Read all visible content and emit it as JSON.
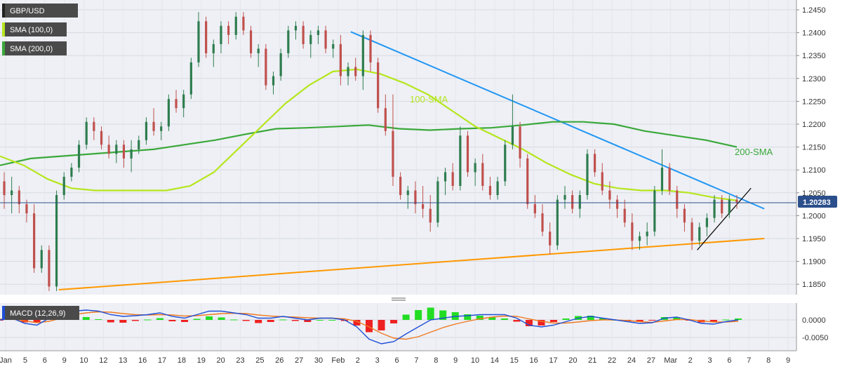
{
  "chart_data": {
    "type": "candlestick",
    "symbol": "GBP/USD",
    "colors": {
      "background": "#eef0f5",
      "up": "#2e7d4f",
      "down": "#c0504d",
      "sma100": "#b5e61d",
      "sma200": "#3aa83a",
      "trend_blue": "#2196f3",
      "trend_orange": "#ff9800",
      "trend_black": "#000000",
      "price_line": "#2b4f8c",
      "macd_line": "#1f4fd8",
      "signal_line": "#f07a20",
      "hist_pos": "#22dd22",
      "hist_neg": "#ee2222",
      "price_badge": "#2b4f8c"
    },
    "legend": [
      {
        "label": "GBP/USD",
        "color": "#4a4a4a"
      },
      {
        "label": "SMA (100,0)",
        "color": "#b5e61d"
      },
      {
        "label": "SMA (200,0)",
        "color": "#3aa83a"
      }
    ],
    "price_axis": {
      "min": 1.18,
      "max": 1.25,
      "ticks": [
        "1.2450",
        "1.2400",
        "1.2350",
        "1.2300",
        "1.2250",
        "1.2200",
        "1.2150",
        "1.2100",
        "1.2050",
        "1.2000",
        "1.1950",
        "1.1900",
        "1.1850"
      ]
    },
    "last_price": "1.20283",
    "x_labels": [
      "Jan",
      "5",
      "6",
      "9",
      "10",
      "12",
      "13",
      "16",
      "17",
      "18",
      "19",
      "20",
      "23",
      "25",
      "26",
      "27",
      "30",
      "Feb",
      "2",
      "3",
      "6",
      "7",
      "8",
      "9",
      "10",
      "14",
      "15",
      "16",
      "17",
      "20",
      "21",
      "22",
      "24",
      "27",
      "Mar",
      "2",
      "3",
      "6",
      "7",
      "8",
      "9"
    ],
    "annotations": [
      {
        "text": "100-SMA",
        "color": "#b5e61d"
      },
      {
        "text": "200-SMA",
        "color": "#3aa83a"
      }
    ],
    "sma100": [
      1.213,
      1.211,
      1.208,
      1.206,
      1.2055,
      1.2055,
      1.2055,
      1.2055,
      1.2065,
      1.2095,
      1.2145,
      1.2195,
      1.2245,
      1.2285,
      1.2315,
      1.232,
      1.231,
      1.229,
      1.2265,
      1.223,
      1.2195,
      1.217,
      1.2145,
      1.2115,
      1.209,
      1.207,
      1.206,
      1.2055,
      1.2055,
      1.205,
      1.204,
      1.2033
    ],
    "sma200": [
      1.211,
      1.2125,
      1.213,
      1.2135,
      1.214,
      1.2145,
      1.2155,
      1.2165,
      1.2178,
      1.219,
      1.2192,
      1.2195,
      1.2198,
      1.219,
      1.2187,
      1.219,
      1.2192,
      1.2198,
      1.2205,
      1.2205,
      1.22,
      1.2185,
      1.2175,
      1.2165,
      1.215
    ],
    "trendlines": [
      {
        "name": "descending-resistance",
        "from": [
          "Feb 1",
          1.2402
        ],
        "to": [
          "Mar 8",
          1.2015
        ]
      },
      {
        "name": "ascending-support",
        "from": [
          "Jan 6",
          1.1838
        ],
        "to": [
          "Mar 8",
          1.195
        ]
      },
      {
        "name": "short-term-support",
        "from": [
          "Mar 2",
          1.1925
        ],
        "to": [
          "Mar 7",
          1.206
        ]
      }
    ],
    "candles": [
      [
        1.2075,
        1.2095,
        1.2015,
        1.2045
      ],
      [
        1.2045,
        1.2085,
        1.2005,
        1.2055
      ],
      [
        1.2055,
        1.2065,
        1.2005,
        1.2025
      ],
      [
        1.2025,
        1.2035,
        1.1985,
        1.2005
      ],
      [
        1.2005,
        1.2025,
        1.1875,
        1.1885
      ],
      [
        1.1885,
        1.1935,
        1.1875,
        1.1925
      ],
      [
        1.1925,
        1.1935,
        1.1835,
        1.1845
      ],
      [
        1.1845,
        1.2055,
        1.1835,
        1.2045
      ],
      [
        1.2045,
        1.2095,
        1.2035,
        1.2085
      ],
      [
        1.2085,
        1.2115,
        1.2075,
        1.2105
      ],
      [
        1.2105,
        1.2165,
        1.2095,
        1.2155
      ],
      [
        1.2155,
        1.2215,
        1.2145,
        1.2205
      ],
      [
        1.2205,
        1.2215,
        1.2165,
        1.2185
      ],
      [
        1.2185,
        1.2195,
        1.2145,
        1.2155
      ],
      [
        1.2155,
        1.2175,
        1.2125,
        1.2135
      ],
      [
        1.2135,
        1.2165,
        1.2115,
        1.2155
      ],
      [
        1.2155,
        1.2165,
        1.2105,
        1.2125
      ],
      [
        1.2125,
        1.2165,
        1.2095,
        1.2145
      ],
      [
        1.2145,
        1.2175,
        1.2135,
        1.2165
      ],
      [
        1.2165,
        1.2215,
        1.2155,
        1.2205
      ],
      [
        1.2205,
        1.2235,
        1.2175,
        1.2185
      ],
      [
        1.2185,
        1.2205,
        1.2165,
        1.2195
      ],
      [
        1.2195,
        1.2265,
        1.2185,
        1.2255
      ],
      [
        1.2255,
        1.2275,
        1.2225,
        1.2235
      ],
      [
        1.2235,
        1.2275,
        1.2215,
        1.2265
      ],
      [
        1.2265,
        1.2345,
        1.2255,
        1.2335
      ],
      [
        1.2335,
        1.2445,
        1.2325,
        1.2425
      ],
      [
        1.2425,
        1.2435,
        1.2345,
        1.2355
      ],
      [
        1.2355,
        1.2385,
        1.2325,
        1.2375
      ],
      [
        1.2375,
        1.2425,
        1.2355,
        1.2415
      ],
      [
        1.2415,
        1.2425,
        1.2375,
        1.2395
      ],
      [
        1.2395,
        1.2445,
        1.2385,
        1.2435
      ],
      [
        1.2435,
        1.2445,
        1.2395,
        1.2405
      ],
      [
        1.2405,
        1.2415,
        1.2345,
        1.2355
      ],
      [
        1.2355,
        1.2375,
        1.2325,
        1.2365
      ],
      [
        1.2365,
        1.2375,
        1.2275,
        1.2285
      ],
      [
        1.2285,
        1.2315,
        1.2265,
        1.2305
      ],
      [
        1.2305,
        1.2365,
        1.2295,
        1.2355
      ],
      [
        1.2355,
        1.2415,
        1.2345,
        1.2405
      ],
      [
        1.2405,
        1.2425,
        1.2385,
        1.2415
      ],
      [
        1.2415,
        1.2425,
        1.2365,
        1.2375
      ],
      [
        1.2375,
        1.2405,
        1.2345,
        1.2395
      ],
      [
        1.2395,
        1.2415,
        1.2375,
        1.2405
      ],
      [
        1.2405,
        1.2415,
        1.2355,
        1.2365
      ],
      [
        1.2365,
        1.2385,
        1.2345,
        1.2375
      ],
      [
        1.2375,
        1.2395,
        1.2285,
        1.2305
      ],
      [
        1.2305,
        1.2335,
        1.2285,
        1.2325
      ],
      [
        1.2325,
        1.2345,
        1.2295,
        1.2305
      ],
      [
        1.2305,
        1.2405,
        1.2275,
        1.2395
      ],
      [
        1.2395,
        1.2405,
        1.2315,
        1.2335
      ],
      [
        1.2335,
        1.2345,
        1.2225,
        1.2235
      ],
      [
        1.2235,
        1.2265,
        1.2175,
        1.2185
      ],
      [
        1.2185,
        1.2265,
        1.2065,
        1.2085
      ],
      [
        1.2085,
        1.2095,
        1.2035,
        1.2045
      ],
      [
        1.2045,
        1.2065,
        1.2015,
        1.2055
      ],
      [
        1.2055,
        1.2075,
        1.2005,
        1.2025
      ],
      [
        1.2025,
        1.2065,
        1.1995,
        1.2015
      ],
      [
        1.2015,
        1.2045,
        1.1965,
        1.1985
      ],
      [
        1.1985,
        1.2085,
        1.1975,
        1.2075
      ],
      [
        1.2075,
        1.2105,
        1.2045,
        1.2095
      ],
      [
        1.2095,
        1.2115,
        1.2055,
        1.2065
      ],
      [
        1.2065,
        1.2195,
        1.2055,
        1.2175
      ],
      [
        1.2175,
        1.2185,
        1.2085,
        1.2095
      ],
      [
        1.2095,
        1.2125,
        1.2065,
        1.2115
      ],
      [
        1.2115,
        1.2135,
        1.2055,
        1.2065
      ],
      [
        1.2065,
        1.2085,
        1.2035,
        1.2045
      ],
      [
        1.2045,
        1.2085,
        1.2035,
        1.2075
      ],
      [
        1.2075,
        1.2165,
        1.2065,
        1.2155
      ],
      [
        1.2155,
        1.2265,
        1.2145,
        1.2195
      ],
      [
        1.2195,
        1.2205,
        1.2105,
        1.2125
      ],
      [
        1.2125,
        1.2135,
        1.2015,
        1.2025
      ],
      [
        1.2025,
        1.2045,
        1.1995,
        1.2005
      ],
      [
        1.2005,
        1.2025,
        1.1955,
        1.1965
      ],
      [
        1.1965,
        1.1985,
        1.1915,
        1.1935
      ],
      [
        1.1935,
        1.2045,
        1.1925,
        1.2035
      ],
      [
        1.2035,
        1.2065,
        1.2015,
        1.2045
      ],
      [
        1.2045,
        1.2055,
        1.2005,
        1.2015
      ],
      [
        1.2015,
        1.2055,
        1.1995,
        1.2045
      ],
      [
        1.2045,
        1.2145,
        1.2035,
        1.2135
      ],
      [
        1.2135,
        1.2145,
        1.2085,
        1.2095
      ],
      [
        1.2095,
        1.2115,
        1.2045,
        1.2055
      ],
      [
        1.2055,
        1.2075,
        1.2015,
        1.2035
      ],
      [
        1.2035,
        1.2045,
        1.1995,
        1.2015
      ],
      [
        1.2015,
        1.2035,
        1.1975,
        1.1985
      ],
      [
        1.1985,
        1.2005,
        1.1925,
        1.1945
      ],
      [
        1.1945,
        1.1965,
        1.1925,
        1.1955
      ],
      [
        1.1955,
        1.1985,
        1.1935,
        1.1965
      ],
      [
        1.1965,
        1.2065,
        1.1955,
        1.2055
      ],
      [
        1.2055,
        1.2145,
        1.2045,
        1.2105
      ],
      [
        1.2105,
        1.2115,
        1.2045,
        1.2055
      ],
      [
        1.2055,
        1.2065,
        1.1995,
        1.2015
      ],
      [
        1.2015,
        1.2025,
        1.1965,
        1.1985
      ],
      [
        1.1985,
        1.1995,
        1.1925,
        1.1945
      ],
      [
        1.1945,
        1.1985,
        1.1935,
        1.1975
      ],
      [
        1.1975,
        1.2005,
        1.1955,
        1.1995
      ],
      [
        1.1995,
        1.2045,
        1.1985,
        1.2035
      ],
      [
        1.2035,
        1.2045,
        1.1995,
        1.2005
      ],
      [
        1.2005,
        1.2045,
        1.1995,
        1.2035
      ],
      [
        1.2035,
        1.2045,
        1.2015,
        1.2028
      ]
    ],
    "macd": {
      "label": "MACD (12,26,9)",
      "axis_ticks": [
        "0.0000",
        "-0.0050"
      ],
      "axis_range": [
        -0.0075,
        0.0035
      ],
      "macd_line": [
        0.0,
        0.0005,
        -0.001,
        -0.0015,
        0.0005,
        0.002,
        0.0025,
        0.0028,
        0.0025,
        0.0015,
        0.001,
        0.0012,
        0.0015,
        0.002,
        0.001,
        0.0005,
        0.0015,
        0.0025,
        0.0025,
        0.002,
        0.0015,
        0.0005,
        0.0005,
        0.001,
        0.0005,
        0.0,
        0.0005,
        0.0005,
        0.0,
        -0.002,
        -0.0055,
        -0.0068,
        -0.0062,
        -0.004,
        -0.002,
        0.0,
        0.0005,
        0.001,
        0.0012,
        0.0015,
        0.0015,
        0.0015,
        0.0005,
        -0.0015,
        -0.002,
        -0.0015,
        -0.0005,
        0.0005,
        0.001,
        0.0005,
        0.0,
        -0.0005,
        -0.001,
        -0.0008,
        0.0005,
        0.0008,
        0.0,
        -0.001,
        -0.0012,
        -0.0005,
        0.0
      ],
      "signal_line": [
        0.0002,
        0.0002,
        -0.0003,
        -0.0008,
        -0.0004,
        0.0005,
        0.0015,
        0.002,
        0.0023,
        0.0022,
        0.0018,
        0.0015,
        0.0014,
        0.0015,
        0.0014,
        0.0011,
        0.0012,
        0.0015,
        0.0018,
        0.0019,
        0.0018,
        0.0014,
        0.0011,
        0.0009,
        0.0008,
        0.0006,
        0.0005,
        0.0005,
        0.0003,
        -0.0004,
        -0.002,
        -0.0038,
        -0.0052,
        -0.0055,
        -0.0048,
        -0.0035,
        -0.0022,
        -0.0012,
        -0.0004,
        0.0003,
        0.0008,
        0.0011,
        0.001,
        0.0003,
        -0.0004,
        -0.0009,
        -0.0009,
        -0.0006,
        -0.0002,
        0.0,
        0.0,
        -0.0002,
        -0.0005,
        -0.0007,
        -0.0003,
        0.0001,
        0.0001,
        -0.0003,
        -0.0006,
        -0.0006,
        -0.0004
      ]
    }
  }
}
